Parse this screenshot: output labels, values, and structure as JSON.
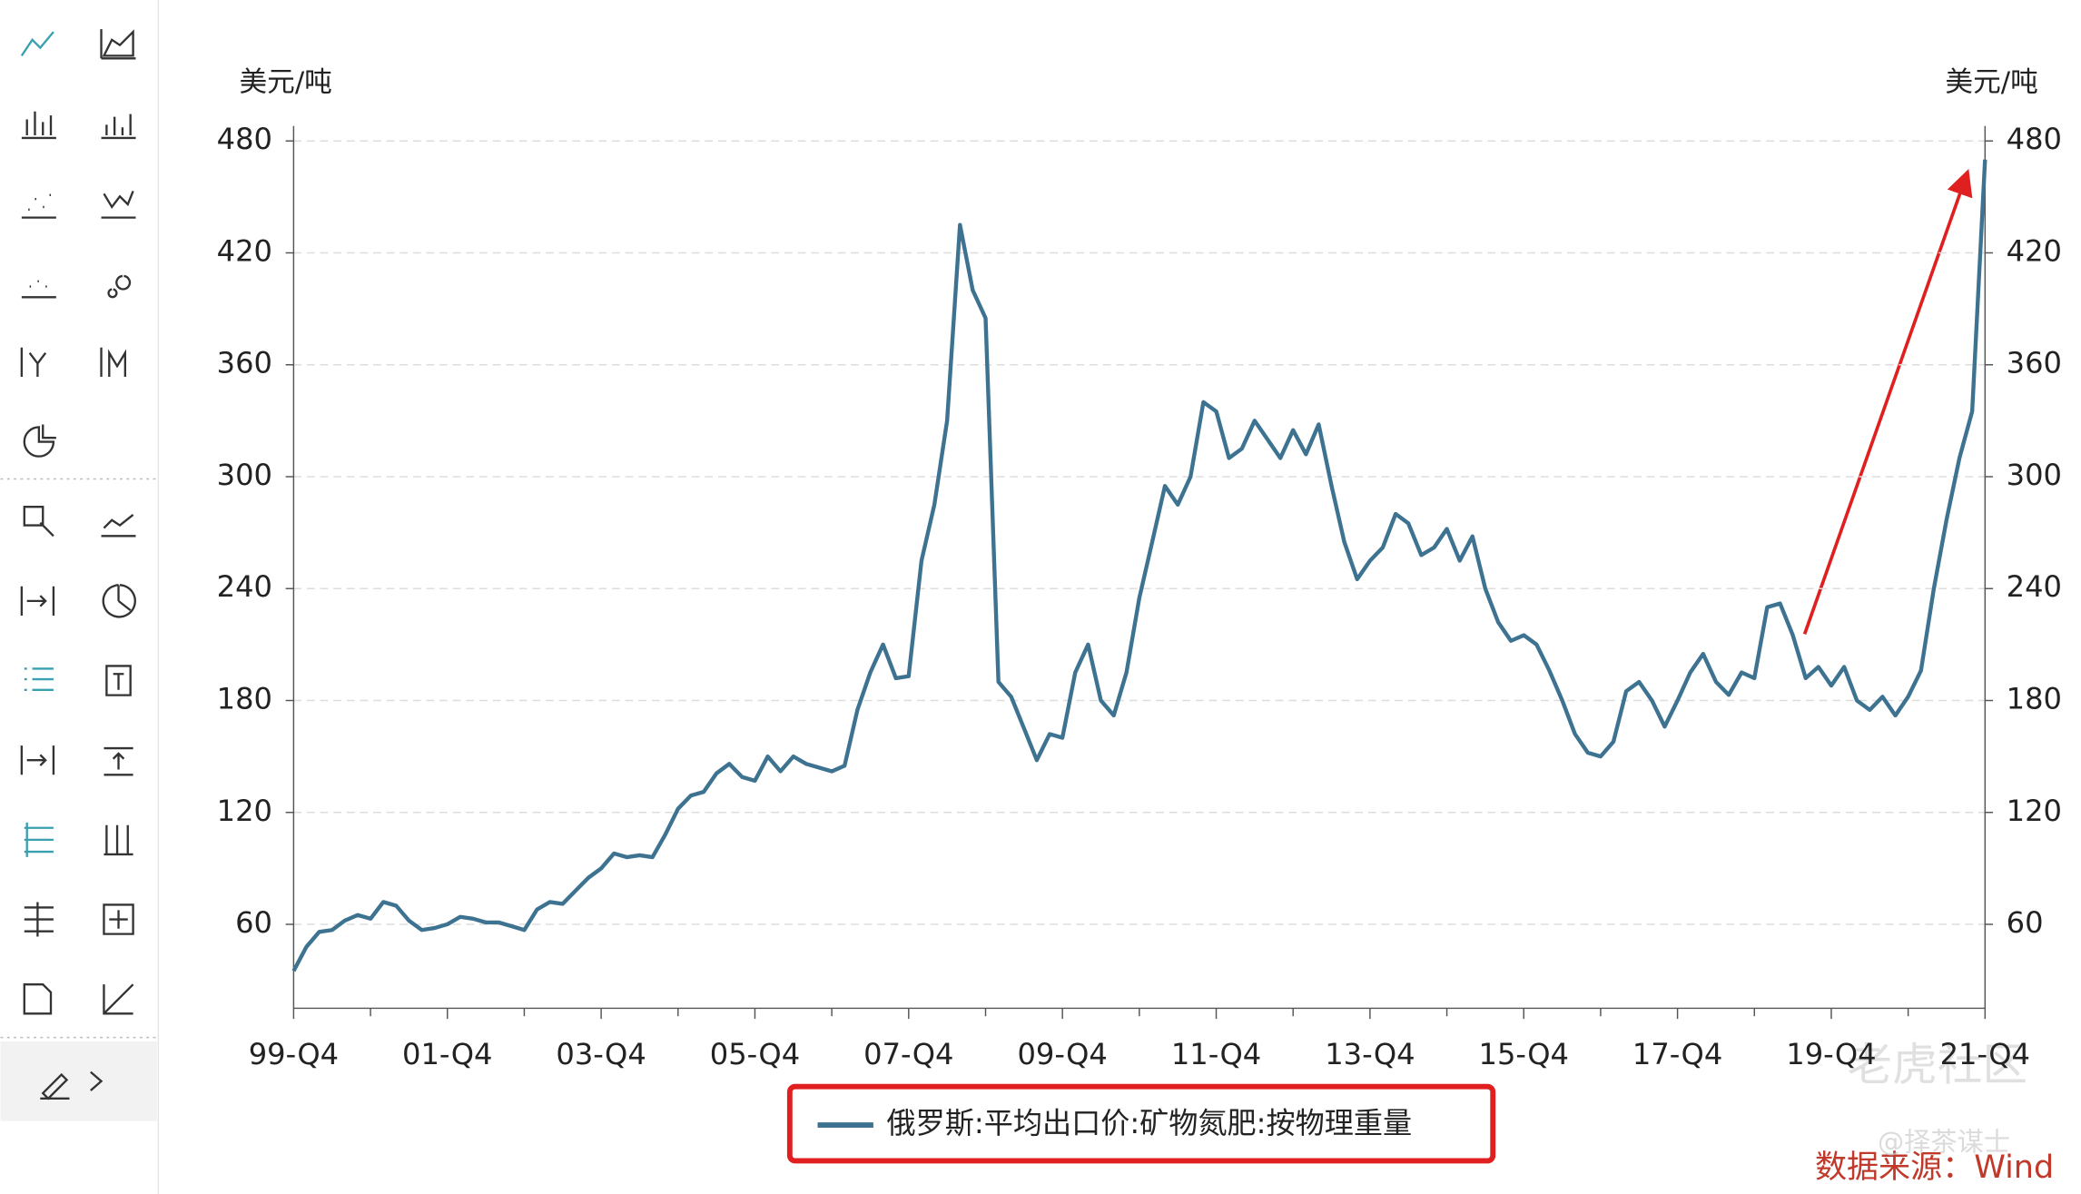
{
  "chart_data": {
    "type": "line",
    "y_unit_left": "美元/吨",
    "y_unit_right": "美元/吨",
    "source": "数据来源：Wind",
    "watermarks": [
      "老虎社区",
      "@择茶谋士"
    ],
    "categories": [
      "99-Q4",
      null,
      null,
      null,
      null,
      null,
      null,
      null,
      null,
      null,
      null,
      null,
      "01-Q4",
      null,
      null,
      null,
      null,
      null,
      null,
      null,
      null,
      null,
      null,
      null,
      "03-Q4",
      null,
      null,
      null,
      null,
      null,
      null,
      null,
      null,
      null,
      null,
      null,
      "05-Q4",
      null,
      null,
      null,
      null,
      null,
      null,
      null,
      null,
      null,
      null,
      null,
      "07-Q4",
      null,
      null,
      null,
      null,
      null,
      null,
      null,
      null,
      null,
      null,
      null,
      "09-Q4",
      null,
      null,
      null,
      null,
      null,
      null,
      null,
      null,
      null,
      null,
      null,
      "11-Q4",
      null,
      null,
      null,
      null,
      null,
      null,
      null,
      null,
      null,
      null,
      null,
      "13-Q4",
      null,
      null,
      null,
      null,
      null,
      null,
      null,
      null,
      null,
      null,
      null,
      "15-Q4",
      null,
      null,
      null,
      null,
      null,
      null,
      null,
      null,
      null,
      null,
      null,
      "17-Q4",
      null,
      null,
      null,
      null,
      null,
      null,
      null,
      null,
      null,
      null,
      null,
      "19-Q4",
      null,
      null,
      null,
      null,
      null,
      null,
      null,
      null,
      null,
      null,
      null,
      "21-Q4"
    ],
    "series": [
      {
        "name": "俄罗斯:平均出口价:矿物氮肥:按物理重量",
        "color": "#3d7391",
        "values": [
          35,
          48,
          56,
          57,
          62,
          65,
          63,
          72,
          70,
          62,
          57,
          58,
          60,
          64,
          63,
          61,
          61,
          59,
          57,
          68,
          72,
          71,
          78,
          85,
          90,
          98,
          96,
          97,
          96,
          108,
          122,
          129,
          131,
          141,
          146,
          139,
          137,
          150,
          142,
          150,
          146,
          144,
          142,
          145,
          175,
          195,
          210,
          192,
          193,
          255,
          285,
          330,
          435,
          400,
          385,
          190,
          182,
          165,
          148,
          162,
          160,
          195,
          210,
          180,
          172,
          195,
          235,
          265,
          295,
          285,
          300,
          340,
          335,
          310,
          315,
          330,
          320,
          310,
          325,
          312,
          328,
          295,
          265,
          245,
          255,
          262,
          280,
          275,
          258,
          262,
          272,
          255,
          268,
          240,
          222,
          212,
          215,
          210,
          196,
          180,
          162,
          152,
          150,
          158,
          185,
          190,
          180,
          166,
          180,
          195,
          205,
          190,
          183,
          195,
          192,
          230,
          232,
          215,
          192,
          198,
          188,
          198,
          180,
          175,
          182,
          172,
          182,
          196,
          240,
          277,
          310,
          335,
          470
        ]
      }
    ],
    "ylim": [
      15,
      488
    ],
    "yticks": [
      60,
      120,
      180,
      240,
      300,
      360,
      420,
      480
    ],
    "y2lim": [
      15,
      488
    ],
    "y2ticks": [
      60,
      120,
      180,
      240,
      300,
      360,
      420,
      480
    ],
    "grid": true
  }
}
